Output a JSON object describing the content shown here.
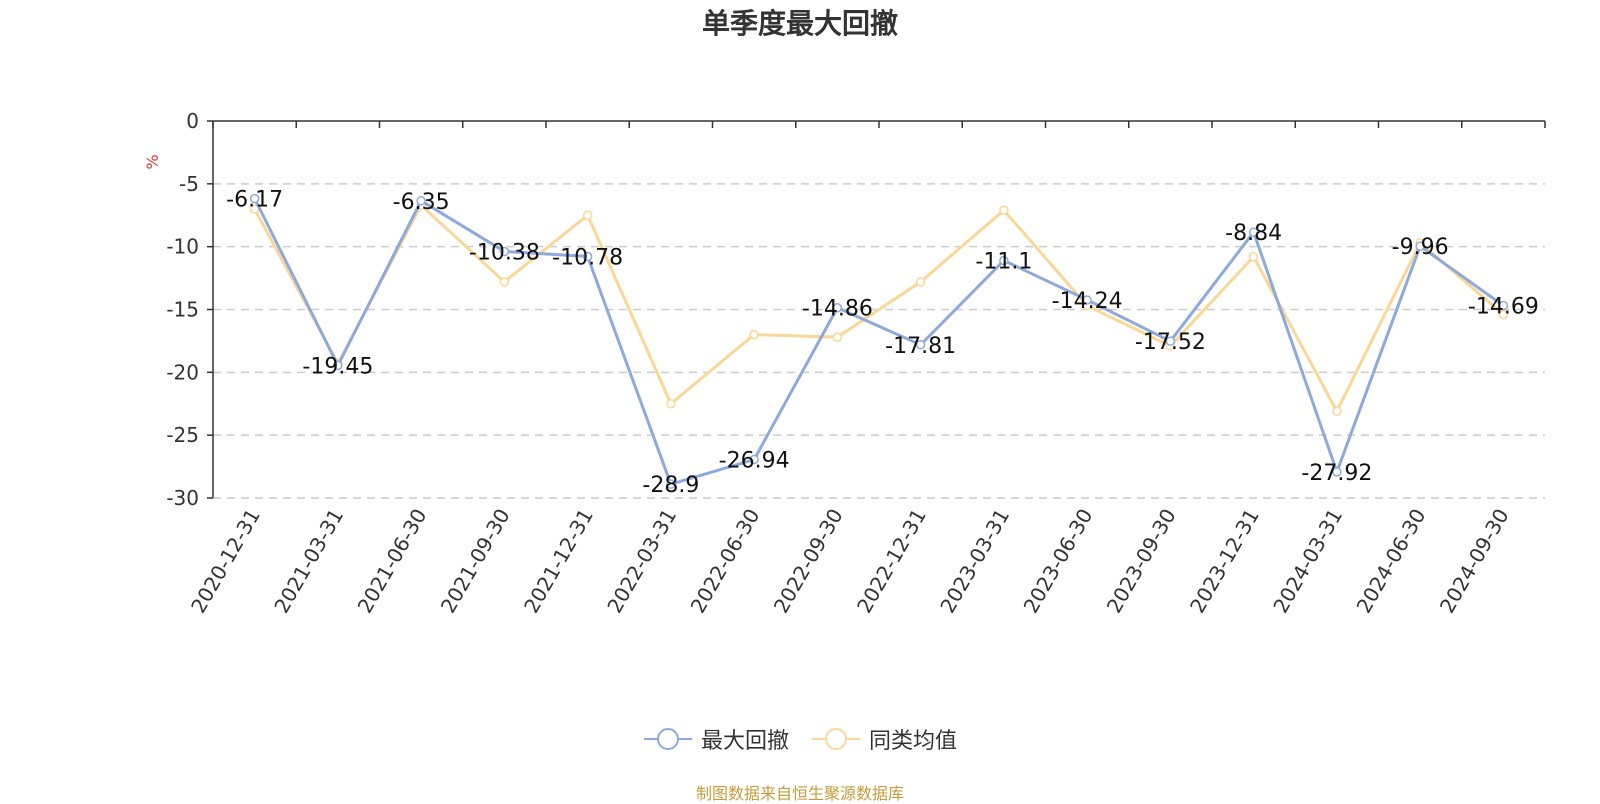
{
  "chart_data": {
    "type": "line",
    "title": "单季度最大回撤",
    "ylabel": "%",
    "ylim": [
      -30,
      0
    ],
    "yticks": [
      0,
      -5,
      -10,
      -15,
      -20,
      -25,
      -30
    ],
    "grid": true,
    "legend_position": "bottom-center",
    "categories": [
      "2020-12-31",
      "2021-03-31",
      "2021-06-30",
      "2021-09-30",
      "2021-12-31",
      "2022-03-31",
      "2022-06-30",
      "2022-09-30",
      "2022-12-31",
      "2023-03-31",
      "2023-06-30",
      "2023-09-30",
      "2023-12-31",
      "2024-03-31",
      "2024-06-30",
      "2024-09-30"
    ],
    "series": [
      {
        "name": "最大回撤",
        "color": "#8eaadc",
        "values": [
          -6.17,
          -19.45,
          -6.35,
          -10.38,
          -10.78,
          -28.9,
          -26.94,
          -14.86,
          -17.81,
          -11.1,
          -14.24,
          -17.52,
          -8.84,
          -27.92,
          -9.96,
          -14.69
        ]
      },
      {
        "name": "同类均值",
        "color": "#fad797",
        "values": [
          -7.0,
          -19.3,
          -6.7,
          -12.8,
          -7.5,
          -22.5,
          -17.0,
          -17.2,
          -12.8,
          -7.1,
          -14.7,
          -17.9,
          -10.8,
          -23.1,
          -9.7,
          -15.4
        ]
      }
    ]
  },
  "source_note": "制图数据来自恒生聚源数据库",
  "colors": {
    "axis": "#333333",
    "grid": "#cccccc",
    "ylabel": "#e53935",
    "source": "#c89c3c"
  }
}
